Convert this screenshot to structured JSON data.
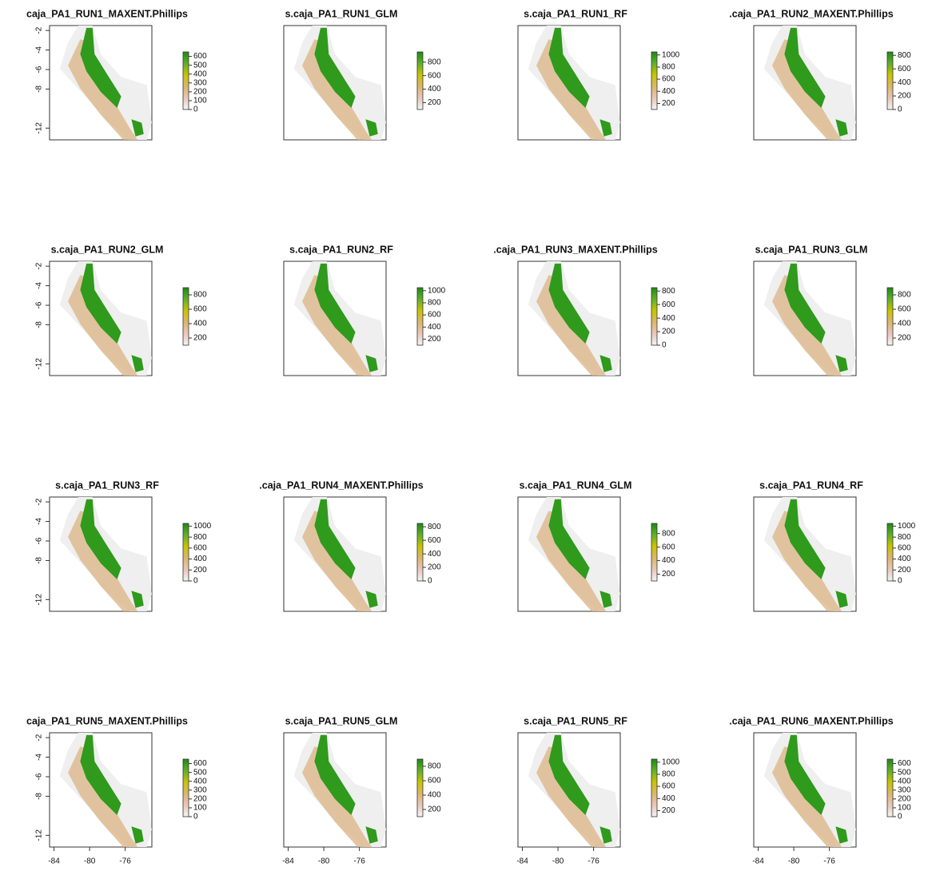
{
  "chart_data": [
    {
      "type": "raster",
      "title": "caja_PA1_RUN1_MAXENT.Phillips",
      "xlim": [
        -84.5,
        -73
      ],
      "ylim": [
        -13.2,
        -1.5
      ],
      "yticks": [
        -2,
        -4,
        -6,
        -8,
        -12
      ],
      "zlim": [
        0,
        650
      ],
      "legend_ticks": [
        0,
        100,
        200,
        300,
        400,
        500,
        600
      ]
    },
    {
      "type": "raster",
      "title": "s.caja_PA1_RUN1_GLM",
      "xlim": [
        -84.5,
        -73
      ],
      "ylim": [
        -13.2,
        -1.5
      ],
      "zlim": [
        100,
        950
      ],
      "legend_ticks": [
        200,
        400,
        600,
        800
      ]
    },
    {
      "type": "raster",
      "title": "s.caja_PA1_RUN1_RF",
      "xlim": [
        -84.5,
        -73
      ],
      "ylim": [
        -13.2,
        -1.5
      ],
      "zlim": [
        100,
        1050
      ],
      "legend_ticks": [
        200,
        400,
        600,
        800,
        1000
      ]
    },
    {
      "type": "raster",
      "title": ".caja_PA1_RUN2_MAXENT.Phillips",
      "xlim": [
        -84.5,
        -73
      ],
      "ylim": [
        -13.2,
        -1.5
      ],
      "zlim": [
        0,
        850
      ],
      "legend_ticks": [
        0,
        200,
        400,
        600,
        800
      ]
    },
    {
      "type": "raster",
      "title": "s.caja_PA1_RUN2_GLM",
      "xlim": [
        -84.5,
        -73
      ],
      "ylim": [
        -13.2,
        -1.5
      ],
      "yticks": [
        -2,
        -4,
        -6,
        -8,
        -12
      ],
      "zlim": [
        100,
        900
      ],
      "legend_ticks": [
        200,
        400,
        600,
        800
      ]
    },
    {
      "type": "raster",
      "title": "s.caja_PA1_RUN2_RF",
      "xlim": [
        -84.5,
        -73
      ],
      "ylim": [
        -13.2,
        -1.5
      ],
      "zlim": [
        100,
        1050
      ],
      "legend_ticks": [
        200,
        400,
        600,
        800,
        1000
      ]
    },
    {
      "type": "raster",
      "title": ".caja_PA1_RUN3_MAXENT.Phillips",
      "xlim": [
        -84.5,
        -73
      ],
      "ylim": [
        -13.2,
        -1.5
      ],
      "zlim": [
        0,
        850
      ],
      "legend_ticks": [
        0,
        200,
        400,
        600,
        800
      ]
    },
    {
      "type": "raster",
      "title": "s.caja_PA1_RUN3_GLM",
      "xlim": [
        -84.5,
        -73
      ],
      "ylim": [
        -13.2,
        -1.5
      ],
      "zlim": [
        100,
        900
      ],
      "legend_ticks": [
        200,
        400,
        600,
        800
      ]
    },
    {
      "type": "raster",
      "title": "s.caja_PA1_RUN3_RF",
      "xlim": [
        -84.5,
        -73
      ],
      "ylim": [
        -13.2,
        -1.5
      ],
      "yticks": [
        -2,
        -4,
        -6,
        -8,
        -12
      ],
      "zlim": [
        0,
        1050
      ],
      "legend_ticks": [
        0,
        200,
        400,
        600,
        800,
        1000
      ]
    },
    {
      "type": "raster",
      "title": ".caja_PA1_RUN4_MAXENT.Phillips",
      "xlim": [
        -84.5,
        -73
      ],
      "ylim": [
        -13.2,
        -1.5
      ],
      "zlim": [
        0,
        850
      ],
      "legend_ticks": [
        0,
        200,
        400,
        600,
        800
      ]
    },
    {
      "type": "raster",
      "title": "s.caja_PA1_RUN4_GLM",
      "xlim": [
        -84.5,
        -73
      ],
      "ylim": [
        -13.2,
        -1.5
      ],
      "zlim": [
        100,
        950
      ],
      "legend_ticks": [
        200,
        400,
        600,
        800
      ]
    },
    {
      "type": "raster",
      "title": "s.caja_PA1_RUN4_RF",
      "xlim": [
        -84.5,
        -73
      ],
      "ylim": [
        -13.2,
        -1.5
      ],
      "zlim": [
        0,
        1050
      ],
      "legend_ticks": [
        0,
        200,
        400,
        600,
        800,
        1000
      ]
    },
    {
      "type": "raster",
      "title": "caja_PA1_RUN5_MAXENT.Phillips",
      "xlim": [
        -84.5,
        -73
      ],
      "ylim": [
        -13.2,
        -1.5
      ],
      "xticks": [
        -84,
        -80,
        -76
      ],
      "yticks": [
        -2,
        -4,
        -6,
        -8,
        -12
      ],
      "zlim": [
        0,
        650
      ],
      "legend_ticks": [
        0,
        100,
        200,
        300,
        400,
        500,
        600
      ]
    },
    {
      "type": "raster",
      "title": "s.caja_PA1_RUN5_GLM",
      "xlim": [
        -84.5,
        -73
      ],
      "ylim": [
        -13.2,
        -1.5
      ],
      "xticks": [
        -84,
        -80,
        -76
      ],
      "zlim": [
        100,
        900
      ],
      "legend_ticks": [
        200,
        400,
        600,
        800
      ]
    },
    {
      "type": "raster",
      "title": "s.caja_PA1_RUN5_RF",
      "xlim": [
        -84.5,
        -73
      ],
      "ylim": [
        -13.2,
        -1.5
      ],
      "xticks": [
        -84,
        -80,
        -76
      ],
      "zlim": [
        100,
        1050
      ],
      "legend_ticks": [
        200,
        400,
        600,
        800,
        1000
      ]
    },
    {
      "type": "raster",
      "title": ".caja_PA1_RUN6_MAXENT.Phillips",
      "xlim": [
        -84.5,
        -73
      ],
      "ylim": [
        -13.2,
        -1.5
      ],
      "xticks": [
        -84,
        -80,
        -76
      ],
      "zlim": [
        0,
        650
      ],
      "legend_ticks": [
        0,
        100,
        200,
        300,
        400,
        500,
        600
      ]
    }
  ]
}
